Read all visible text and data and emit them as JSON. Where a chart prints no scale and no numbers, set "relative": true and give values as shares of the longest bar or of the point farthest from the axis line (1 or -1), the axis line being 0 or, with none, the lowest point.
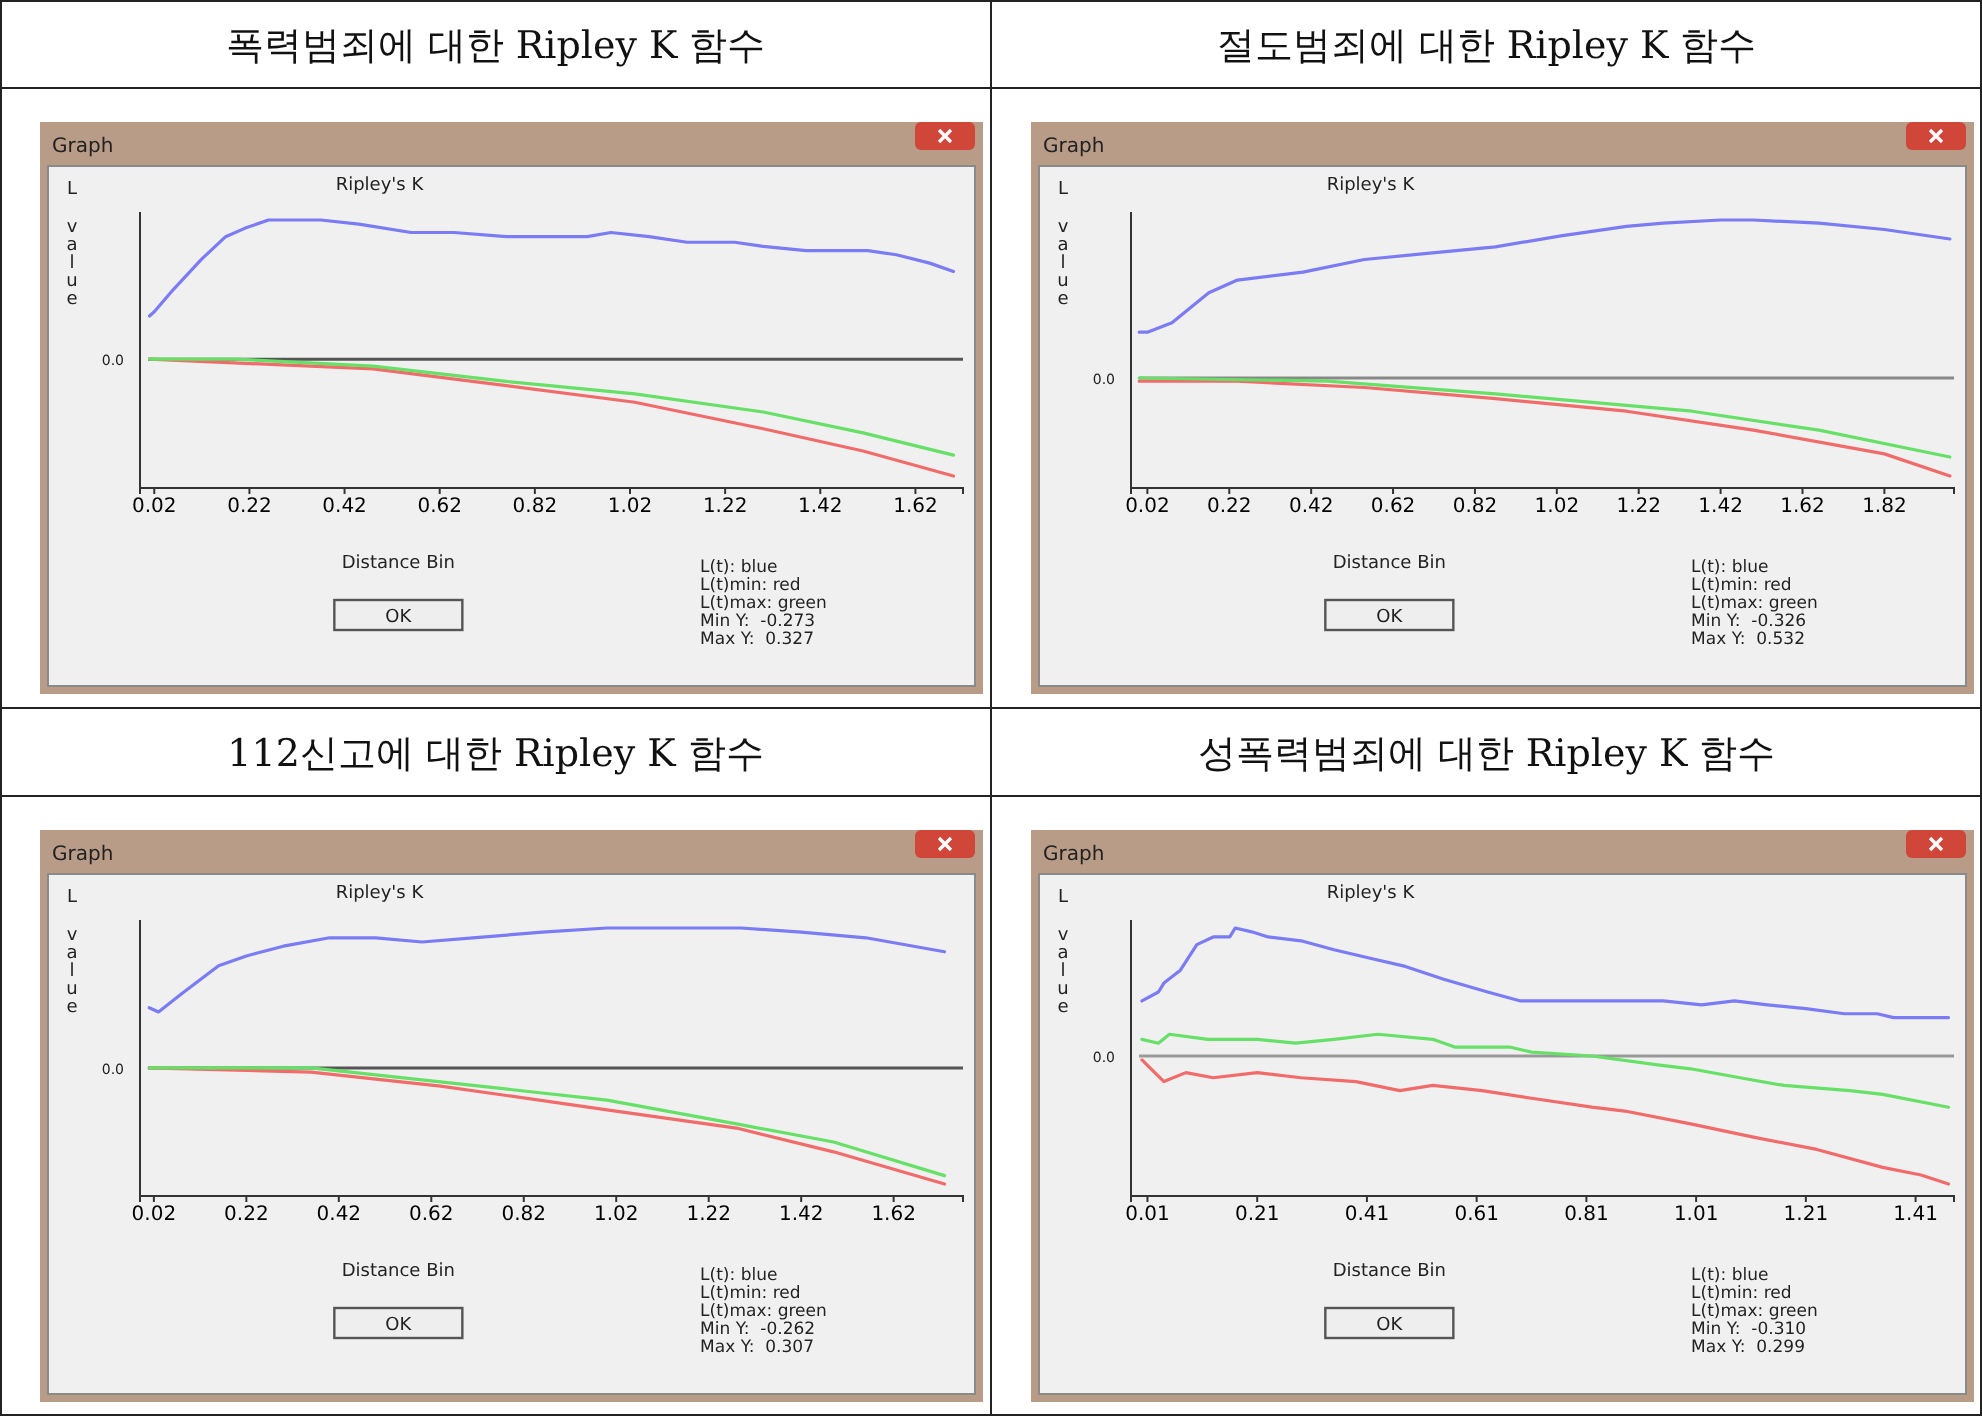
{
  "chart_data": [
    {
      "type": "line",
      "relative": true,
      "title": "폭력범죄에 대한 Ripley K 함수",
      "subtitle": "Ripley's K",
      "xlabel": "Distance Bin",
      "ylabel": "L value",
      "annotations": [
        "Graph",
        "OK",
        "0.0",
        "L(t): blue",
        "L(t)min: red",
        "L(t)max: green",
        "Min Y:  -0.273",
        "Max Y:  0.327"
      ],
      "xlim": [
        -0.01,
        1.72
      ],
      "xticks": [
        0.02,
        0.22,
        0.42,
        0.62,
        0.82,
        1.02,
        1.22,
        1.42,
        1.62
      ],
      "ref_lines": [
        {
          "axis": "y",
          "value": 0,
          "color": "#555555"
        }
      ],
      "series": [
        {
          "color": "#7b7bf5",
          "x": [
            0.01,
            0.02,
            0.06,
            0.12,
            0.17,
            0.21,
            0.26,
            0.32,
            0.37,
            0.45,
            0.56,
            0.65,
            0.76,
            0.84,
            0.93,
            0.98,
            1.06,
            1.14,
            1.24,
            1.3,
            1.39,
            1.47,
            1.52,
            1.58,
            1.65,
            1.7
          ],
          "values": [
            0.31,
            0.34,
            0.5,
            0.72,
            0.88,
            0.94,
            1,
            1,
            1,
            0.97,
            0.91,
            0.91,
            0.88,
            0.88,
            0.88,
            0.91,
            0.88,
            0.84,
            0.84,
            0.81,
            0.78,
            0.78,
            0.78,
            0.75,
            0.69,
            0.63
          ]
        },
        {
          "color": "#f26b6b",
          "x": [
            0.01,
            0.21,
            0.48,
            0.76,
            1.03,
            1.3,
            1.51,
            1.7
          ],
          "values": [
            0,
            -0.03,
            -0.07,
            -0.19,
            -0.31,
            -0.5,
            -0.66,
            -0.84
          ]
        },
        {
          "color": "#66e066",
          "x": [
            0.01,
            0.19,
            0.48,
            0.76,
            1.03,
            1.3,
            1.51,
            1.7
          ],
          "values": [
            0,
            0,
            -0.05,
            -0.16,
            -0.25,
            -0.38,
            -0.53,
            -0.69
          ]
        }
      ]
    },
    {
      "type": "line",
      "relative": true,
      "title": "절도범죄에 대한 Ripley K 함수",
      "subtitle": "Ripley's K",
      "xlabel": "Distance Bin",
      "ylabel": "L value",
      "annotations": [
        "Graph",
        "OK",
        "0.0",
        "L(t): blue",
        "L(t)min: red",
        "L(t)max: green",
        "Min Y:  -0.326",
        "Max Y:  0.532"
      ],
      "xlim": [
        -0.02,
        1.99
      ],
      "xticks": [
        0.02,
        0.22,
        0.42,
        0.62,
        0.82,
        1.02,
        1.22,
        1.42,
        1.62,
        1.82
      ],
      "ref_lines": [
        {
          "axis": "y",
          "value": 0,
          "color": "#888888"
        }
      ],
      "series": [
        {
          "color": "#7b7bf5",
          "x": [
            0.0,
            0.02,
            0.08,
            0.17,
            0.24,
            0.4,
            0.55,
            0.71,
            0.87,
            1.03,
            1.19,
            1.28,
            1.42,
            1.5,
            1.66,
            1.82,
            1.98
          ],
          "values": [
            0.29,
            0.29,
            0.35,
            0.54,
            0.62,
            0.67,
            0.75,
            0.79,
            0.83,
            0.9,
            0.96,
            0.98,
            1,
            1,
            0.98,
            0.94,
            0.88
          ]
        },
        {
          "color": "#f26b6b",
          "x": [
            0.0,
            0.24,
            0.55,
            0.87,
            1.19,
            1.5,
            1.82,
            1.98
          ],
          "values": [
            -0.02,
            -0.02,
            -0.06,
            -0.13,
            -0.21,
            -0.33,
            -0.48,
            -0.62
          ]
        },
        {
          "color": "#66e066",
          "x": [
            0.0,
            0.46,
            0.87,
            1.35,
            1.66,
            1.98
          ],
          "values": [
            0,
            -0.02,
            -0.1,
            -0.21,
            -0.33,
            -0.5
          ]
        }
      ]
    },
    {
      "type": "line",
      "relative": true,
      "title": "112신고에 대한 Ripley K 함수",
      "subtitle": "Ripley's K",
      "xlabel": "Distance Bin",
      "ylabel": "L value",
      "annotations": [
        "Graph",
        "OK",
        "0.0",
        "L(t): blue",
        "L(t)min: red",
        "L(t)max: green",
        "Min Y:  -0.262",
        "Max Y:  0.307"
      ],
      "xlim": [
        -0.01,
        1.77
      ],
      "xticks": [
        0.02,
        0.22,
        0.42,
        0.62,
        0.82,
        1.02,
        1.22,
        1.42,
        1.62
      ],
      "ref_lines": [
        {
          "axis": "y",
          "value": 0,
          "color": "#555555"
        }
      ],
      "series": [
        {
          "color": "#7b7bf5",
          "x": [
            0.01,
            0.03,
            0.08,
            0.16,
            0.22,
            0.3,
            0.4,
            0.5,
            0.6,
            0.71,
            0.86,
            1.0,
            1.07,
            1.21,
            1.29,
            1.42,
            1.56,
            1.73
          ],
          "values": [
            0.43,
            0.4,
            0.53,
            0.73,
            0.8,
            0.87,
            0.93,
            0.93,
            0.9,
            0.93,
            0.97,
            1,
            1,
            1,
            1,
            0.97,
            0.93,
            0.83
          ]
        },
        {
          "color": "#f26b6b",
          "x": [
            0.01,
            0.36,
            0.64,
            1.0,
            1.28,
            1.49,
            1.73
          ],
          "values": [
            0,
            -0.03,
            -0.13,
            -0.3,
            -0.43,
            -0.6,
            -0.83
          ]
        },
        {
          "color": "#66e066",
          "x": [
            0.01,
            0.36,
            0.64,
            1.0,
            1.28,
            1.49,
            1.73
          ],
          "values": [
            0,
            0,
            -0.1,
            -0.23,
            -0.4,
            -0.53,
            -0.77
          ]
        }
      ]
    },
    {
      "type": "line",
      "relative": true,
      "title": "성폭력범죄에 대한 Ripley K 함수",
      "subtitle": "Ripley's K",
      "xlabel": "Distance Bin",
      "ylabel": "L value",
      "annotations": [
        "Graph",
        "OK",
        "0.0",
        "L(t): blue",
        "L(t)min: red",
        "L(t)max: green",
        "Min Y:  -0.310",
        "Max Y:  0.299"
      ],
      "xlim": [
        -0.02,
        1.48
      ],
      "xticks": [
        0.01,
        0.21,
        0.41,
        0.61,
        0.81,
        1.01,
        1.21,
        1.41
      ],
      "ref_lines": [
        {
          "axis": "y",
          "value": 0,
          "color": "#999999"
        }
      ],
      "series": [
        {
          "color": "#7b7bf5",
          "x": [
            0.0,
            0.03,
            0.04,
            0.07,
            0.1,
            0.13,
            0.16,
            0.17,
            0.2,
            0.23,
            0.29,
            0.35,
            0.41,
            0.48,
            0.55,
            0.63,
            0.69,
            0.75,
            0.82,
            0.88,
            0.95,
            1.02,
            1.08,
            1.14,
            1.21,
            1.28,
            1.34,
            1.37,
            1.43,
            1.47
          ],
          "values": [
            0.43,
            0.5,
            0.57,
            0.67,
            0.87,
            0.93,
            0.93,
            1,
            0.97,
            0.93,
            0.9,
            0.83,
            0.77,
            0.7,
            0.6,
            0.5,
            0.43,
            0.43,
            0.43,
            0.43,
            0.43,
            0.4,
            0.43,
            0.4,
            0.37,
            0.33,
            0.33,
            0.3,
            0.3,
            0.3
          ]
        },
        {
          "color": "#f26b6b",
          "x": [
            0.0,
            0.04,
            0.08,
            0.13,
            0.21,
            0.29,
            0.39,
            0.47,
            0.53,
            0.62,
            0.71,
            0.82,
            0.88,
            1.0,
            1.11,
            1.23,
            1.35,
            1.42,
            1.47
          ],
          "values": [
            -0.03,
            -0.2,
            -0.13,
            -0.17,
            -0.13,
            -0.17,
            -0.2,
            -0.27,
            -0.23,
            -0.27,
            -0.33,
            -0.4,
            -0.43,
            -0.53,
            -0.63,
            -0.73,
            -0.87,
            -0.93,
            -1
          ]
        },
        {
          "color": "#66e066",
          "x": [
            0.0,
            0.03,
            0.05,
            0.12,
            0.21,
            0.28,
            0.35,
            0.43,
            0.53,
            0.57,
            0.67,
            0.71,
            0.82,
            0.94,
            1.0,
            1.09,
            1.17,
            1.29,
            1.35,
            1.47
          ],
          "values": [
            0.13,
            0.1,
            0.17,
            0.13,
            0.13,
            0.1,
            0.13,
            0.17,
            0.13,
            0.07,
            0.07,
            0.03,
            0,
            -0.07,
            -0.1,
            -0.17,
            -0.23,
            -0.27,
            -0.3,
            -0.4
          ]
        }
      ]
    }
  ]
}
